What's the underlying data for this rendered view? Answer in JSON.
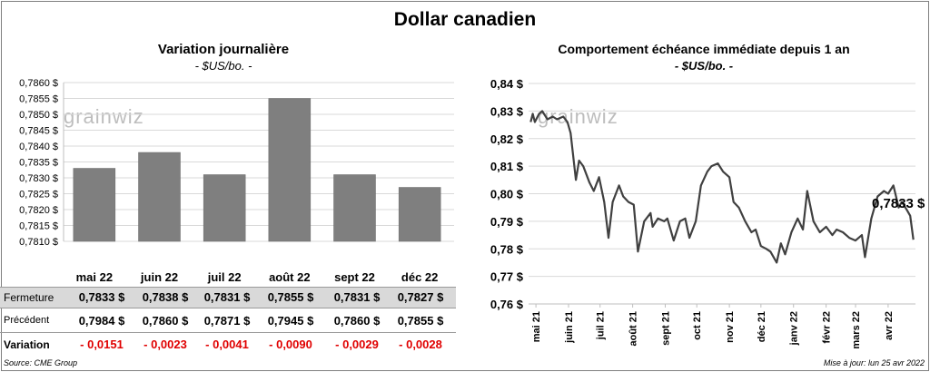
{
  "page_title": "Dollar canadien",
  "left_panel": {
    "title": "Variation  journalière",
    "unit": "- $US/bo. -",
    "watermark": "grainwiz"
  },
  "right_panel": {
    "title": "Comportement échéance immédiate depuis 1 an",
    "unit": "- $US/bo. -",
    "watermark": "grainwiz",
    "last_value_label": "0,7833 $"
  },
  "table": {
    "row_labels": {
      "close": "Fermeture",
      "previous": "Précédent",
      "change": "Variation"
    },
    "close": [
      "0,7833  $",
      "0,7838  $",
      "0,7831  $",
      "0,7855  $",
      "0,7831  $",
      "0,7827  $"
    ],
    "previous": [
      "0,7984  $",
      "0,7860  $",
      "0,7871  $",
      "0,7945  $",
      "0,7860  $",
      "0,7855  $"
    ],
    "change": [
      "- 0,0151",
      "- 0,0023",
      "- 0,0041",
      "- 0,0090",
      "- 0,0029",
      "- 0,0028"
    ]
  },
  "footer": {
    "source": "Source: CME Group",
    "updated": "Mise à jour: lun 25 avr 2022"
  },
  "colors": {
    "bar": "#7f7f7f",
    "line": "#404040",
    "negative": "#e00000",
    "row_shade": "#d9d9d9"
  },
  "chart_data": [
    {
      "type": "bar",
      "categories": [
        "mai 22",
        "juin 22",
        "juil 22",
        "août 22",
        "sept 22",
        "déc 22"
      ],
      "values": [
        0.7833,
        0.7838,
        0.7831,
        0.7855,
        0.7831,
        0.7827
      ],
      "title": "Variation  journalière",
      "ylabel": "- $US/bo. -",
      "ylim": [
        0.781,
        0.786
      ],
      "yticks": [
        "0,7810 $",
        "0,7815 $",
        "0,7820 $",
        "0,7825 $",
        "0,7830 $",
        "0,7835 $",
        "0,7840 $",
        "0,7845 $",
        "0,7850 $",
        "0,7855 $",
        "0,7860 $"
      ],
      "grid": true
    },
    {
      "type": "line",
      "title": "Comportement échéance immédiate depuis 1 an",
      "ylabel": "- $US/bo. -",
      "ylim": [
        0.76,
        0.84
      ],
      "yticks": [
        "0,76 $",
        "0,77 $",
        "0,78 $",
        "0,79 $",
        "0,80 $",
        "0,81 $",
        "0,82 $",
        "0,83 $",
        "0,84 $"
      ],
      "xticks": [
        "mai 21",
        "juin 21",
        "juil 21",
        "août 21",
        "sept 21",
        "oct 21",
        "nov 21",
        "déc 21",
        "janv 22",
        "févr 22",
        "mars 22",
        "avr 22"
      ],
      "x": [
        "2021-04-26",
        "2021-04-28",
        "2021-04-30",
        "2021-05-04",
        "2021-05-07",
        "2021-05-12",
        "2021-05-17",
        "2021-05-21",
        "2021-05-27",
        "2021-05-31",
        "2021-06-03",
        "2021-06-08",
        "2021-06-11",
        "2021-06-15",
        "2021-06-17",
        "2021-06-21",
        "2021-06-25",
        "2021-06-30",
        "2021-07-05",
        "2021-07-09",
        "2021-07-13",
        "2021-07-19",
        "2021-07-23",
        "2021-07-28",
        "2021-08-02",
        "2021-08-06",
        "2021-08-12",
        "2021-08-18",
        "2021-08-20",
        "2021-08-25",
        "2021-08-31",
        "2021-09-03",
        "2021-09-09",
        "2021-09-15",
        "2021-09-20",
        "2021-09-24",
        "2021-09-30",
        "2021-10-05",
        "2021-10-11",
        "2021-10-15",
        "2021-10-21",
        "2021-10-26",
        "2021-11-01",
        "2021-11-05",
        "2021-11-10",
        "2021-11-16",
        "2021-11-22",
        "2021-11-26",
        "2021-12-01",
        "2021-12-06",
        "2021-12-10",
        "2021-12-16",
        "2021-12-20",
        "2021-12-24",
        "2021-12-30",
        "2022-01-05",
        "2022-01-10",
        "2022-01-14",
        "2022-01-20",
        "2022-01-26",
        "2022-02-01",
        "2022-02-07",
        "2022-02-11",
        "2022-02-17",
        "2022-02-23",
        "2022-03-01",
        "2022-03-07",
        "2022-03-10",
        "2022-03-16",
        "2022-03-22",
        "2022-03-28",
        "2022-04-01",
        "2022-04-06",
        "2022-04-11",
        "2022-04-14",
        "2022-04-19",
        "2022-04-22",
        "2022-04-25"
      ],
      "values": [
        0.826,
        0.829,
        0.826,
        0.829,
        0.83,
        0.827,
        0.828,
        0.827,
        0.828,
        0.826,
        0.822,
        0.805,
        0.812,
        0.81,
        0.808,
        0.804,
        0.801,
        0.806,
        0.797,
        0.784,
        0.797,
        0.803,
        0.799,
        0.797,
        0.796,
        0.779,
        0.79,
        0.793,
        0.788,
        0.791,
        0.79,
        0.791,
        0.783,
        0.79,
        0.791,
        0.784,
        0.79,
        0.803,
        0.808,
        0.81,
        0.811,
        0.808,
        0.806,
        0.797,
        0.795,
        0.79,
        0.786,
        0.787,
        0.781,
        0.78,
        0.779,
        0.775,
        0.782,
        0.778,
        0.786,
        0.791,
        0.787,
        0.801,
        0.79,
        0.786,
        0.788,
        0.785,
        0.787,
        0.786,
        0.784,
        0.783,
        0.785,
        0.777,
        0.791,
        0.799,
        0.801,
        0.8,
        0.803,
        0.795,
        0.797,
        0.794,
        0.792,
        0.7833
      ],
      "grid": true
    }
  ]
}
